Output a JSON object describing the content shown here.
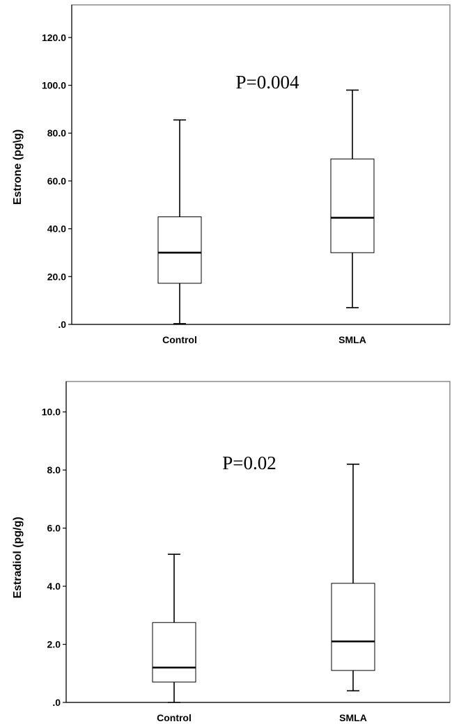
{
  "chart_data": [
    {
      "type": "box",
      "ylabel": "Estrone (pg\\g)",
      "ylim": [
        0,
        130
      ],
      "yticks": [
        0,
        20,
        40,
        60,
        80,
        100,
        120
      ],
      "ytick_labels": [
        ".0",
        "20.0",
        "40.0",
        "60.0",
        "80.0",
        "100.0",
        "120.0"
      ],
      "categories": [
        "Control",
        "SMLA"
      ],
      "boxes": [
        {
          "category": "Control",
          "min": 0.3,
          "q1": 17.2,
          "median": 30.0,
          "q3": 45.0,
          "max": 85.5
        },
        {
          "category": "SMLA",
          "min": 7.0,
          "q1": 30.0,
          "median": 44.6,
          "q3": 69.2,
          "max": 98.0
        }
      ],
      "annotation": "P=0.004",
      "grid": false
    },
    {
      "type": "box",
      "ylabel": "Estradiol (pg/g)",
      "ylim": [
        0,
        11
      ],
      "yticks": [
        0,
        2,
        4,
        6,
        8,
        10
      ],
      "ytick_labels": [
        ".0",
        "2.0",
        "4.0",
        "6.0",
        "8.0",
        "10.0"
      ],
      "categories": [
        "Control",
        "SMLA"
      ],
      "boxes": [
        {
          "category": "Control",
          "min": 0.0,
          "q1": 0.7,
          "median": 1.2,
          "q3": 2.75,
          "max": 5.1
        },
        {
          "category": "SMLA",
          "min": 0.4,
          "q1": 1.1,
          "median": 2.1,
          "q3": 4.1,
          "max": 8.2
        }
      ],
      "annotation": "P=0.02",
      "grid": false
    }
  ]
}
